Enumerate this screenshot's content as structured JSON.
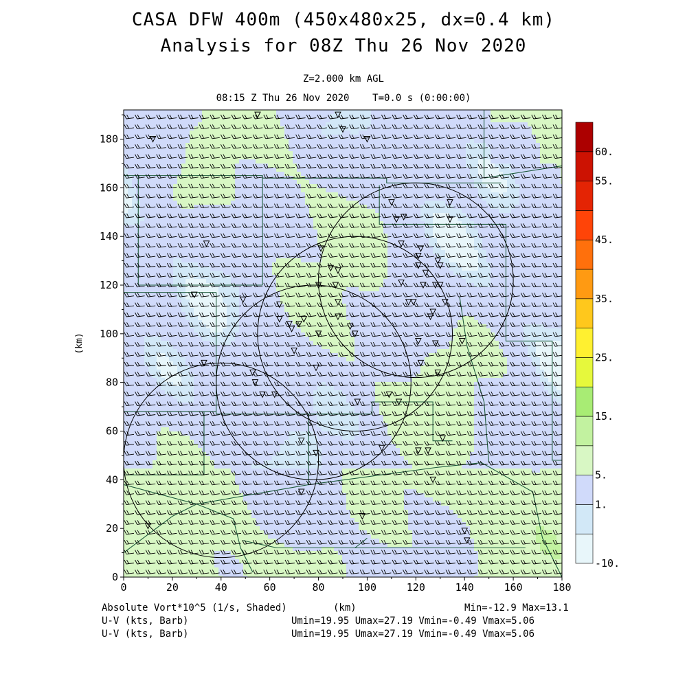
{
  "header": {
    "title_line1": "CASA DFW 400m (450x480x25, dx=0.4 km)",
    "title_line2": "Analysis for 08Z Thu 26 Nov 2020",
    "level": "Z=2.000 km AGL",
    "valid_time": "08:15 Z Thu 26 Nov 2020    T=0.0 s (0:00:00)"
  },
  "footer": {
    "field_label": "Absolute Vort*10^5 (1/s, Shaded)",
    "x_unit": "(km)",
    "minmax": "Min=-12.9 Max=13.1",
    "wind1_label": "U-V (kts, Barb)",
    "wind1_stats": "Umin=19.95 Umax=27.19 Vmin=-0.49 Vmax=5.06",
    "wind2_label": "U-V (kts, Barb)",
    "wind2_stats": "Umin=19.95 Umax=27.19 Vmin=-0.49 Vmax=5.06"
  },
  "chart_data": {
    "type": "heatmap",
    "ylabel": "(km)",
    "xlim": [
      0,
      180
    ],
    "ylim": [
      0,
      192
    ],
    "x_ticks": [
      "0",
      "20",
      "40",
      "60",
      "80",
      "100",
      "120",
      "140",
      "160",
      "180"
    ],
    "y_ticks": [
      "0",
      "20",
      "40",
      "60",
      "80",
      "100",
      "120",
      "140",
      "160",
      "180"
    ],
    "colorbar": {
      "bounds": [
        -10,
        0,
        1,
        5,
        10,
        15,
        20,
        25,
        30,
        35,
        40,
        45,
        50,
        55,
        60
      ],
      "labels": [
        {
          "value": 60,
          "text": "60."
        },
        {
          "value": 55,
          "text": "55."
        },
        {
          "value": 45,
          "text": "45."
        },
        {
          "value": 35,
          "text": "35."
        },
        {
          "value": 25,
          "text": "25."
        },
        {
          "value": 15,
          "text": "15."
        },
        {
          "value": 5,
          "text": "5."
        },
        {
          "value": 1,
          "text": "1."
        },
        {
          "value": -10,
          "text": "-10."
        }
      ],
      "colors": [
        "#e8f6fa",
        "#d2e8f7",
        "#d0dafa",
        "#d8f7c4",
        "#c2f2a0",
        "#a8ec74",
        "#e6f83c",
        "#fff030",
        "#ffc81c",
        "#ff9a12",
        "#ff700c",
        "#ff4408",
        "#e42404",
        "#cc1202",
        "#ac0000"
      ]
    },
    "field_range": [
      -12.9,
      13.1
    ],
    "wind_barbs": {
      "u_range_kts": [
        19.95,
        27.19
      ],
      "v_range_kts": [
        -0.49,
        5.06
      ]
    },
    "radar_rings_center_km": [
      [
        40,
        48
      ],
      [
        78,
        80
      ],
      [
        95,
        100
      ],
      [
        120,
        122
      ]
    ],
    "colors": {
      "background": "#ffffff",
      "boundary": "#1e5a3c",
      "barb": "#000000",
      "text": "#000000"
    }
  }
}
